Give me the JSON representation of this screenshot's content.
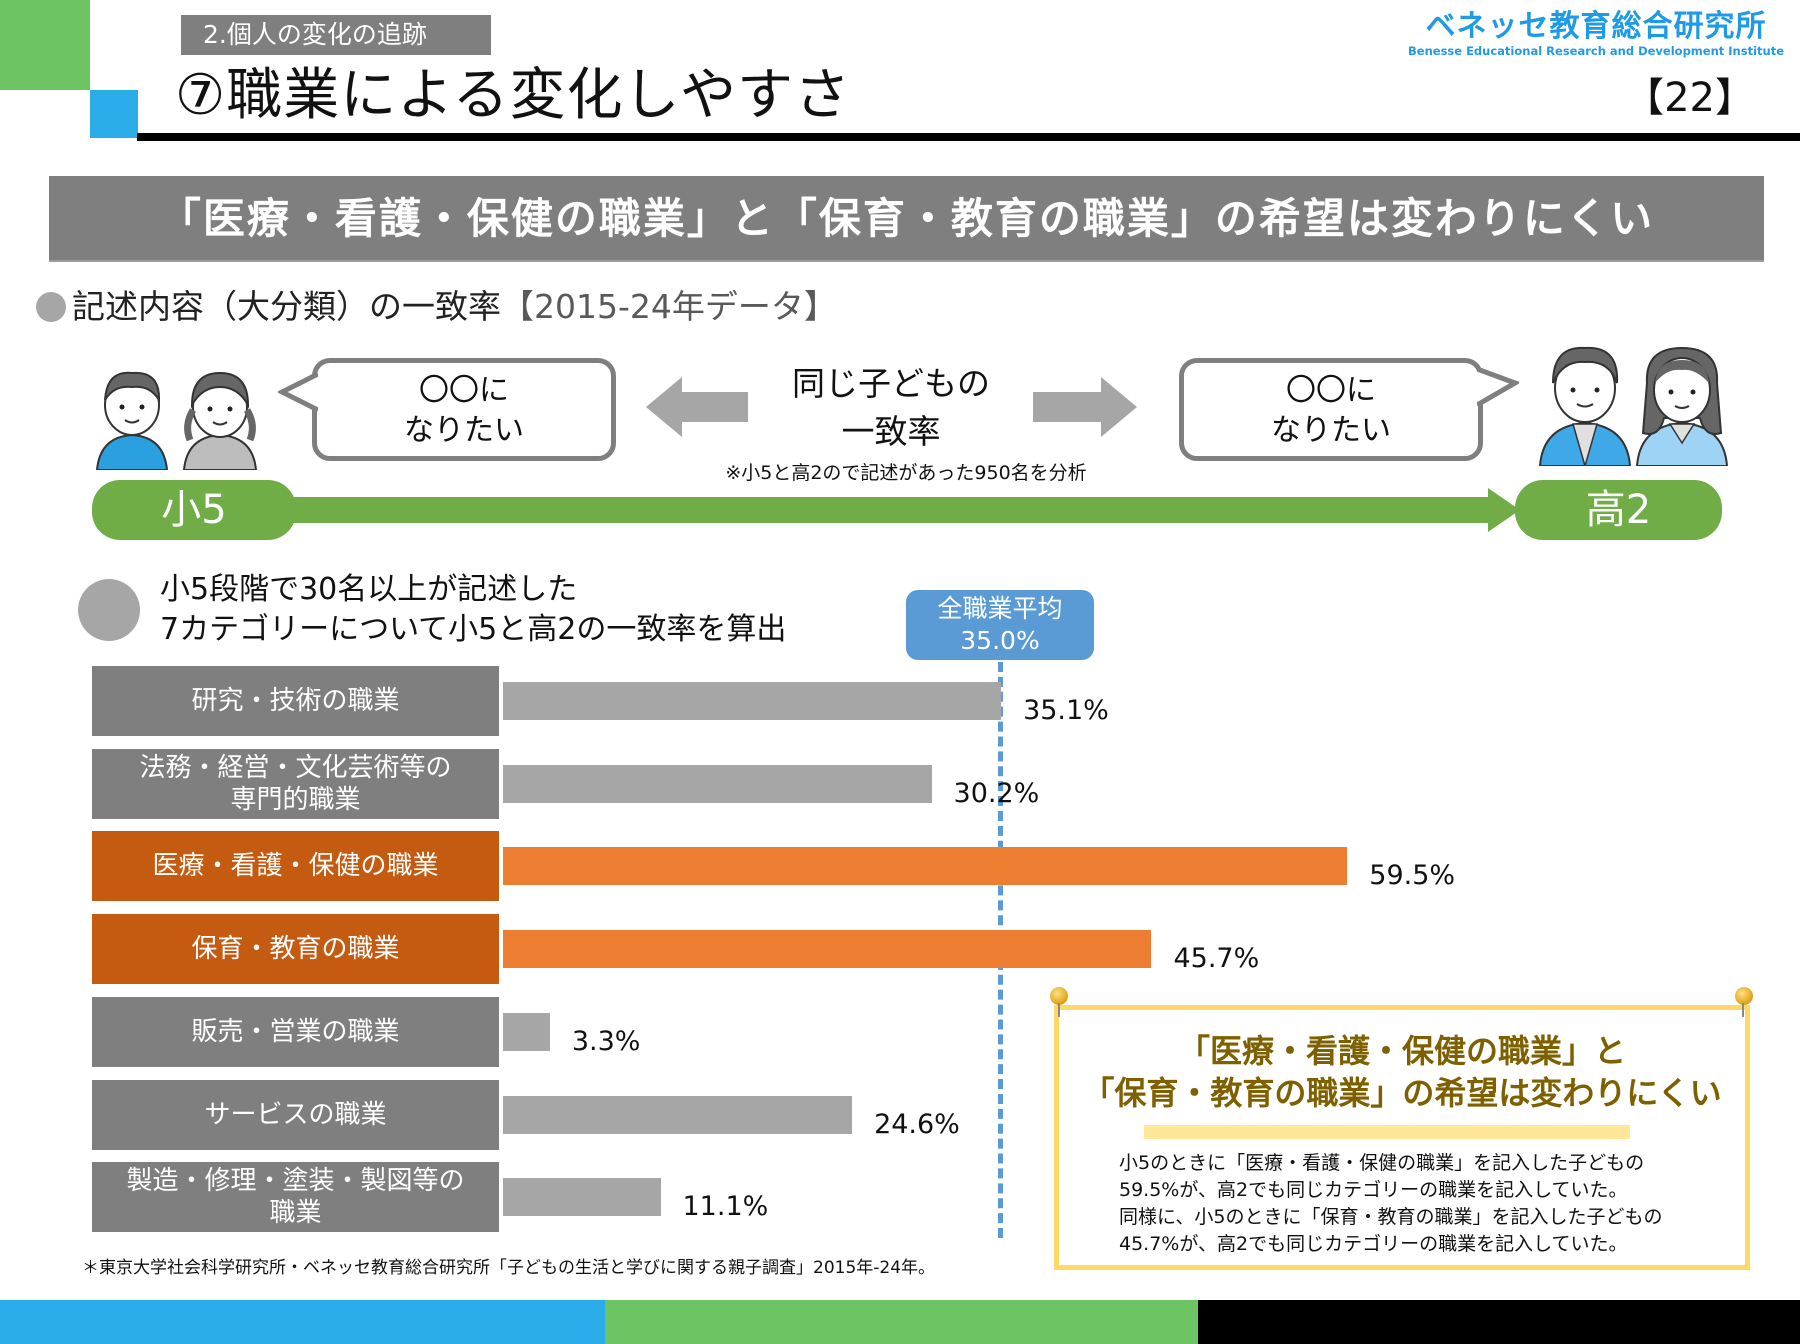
{
  "header": {
    "breadcrumb": "2.個人の変化の追跡",
    "title": "⑦職業による変化しやすさ",
    "page_number": "【22】",
    "logo_jp": "ベネッセ教育総合研究所",
    "logo_en": "Benesse Educational Research and Development Institute"
  },
  "banner": "「医療・看護・保健の職業」と「保育・教育の職業」の希望は変わりにくい",
  "subtitle": {
    "main": "記述内容（大分類）の一致率",
    "bracket": "【2015-24年データ】"
  },
  "timeline": {
    "bubble_left_line1": "〇〇に",
    "bubble_left_line2": "なりたい",
    "bubble_right_line1": "〇〇に",
    "bubble_right_line2": "なりたい",
    "center_line1": "同じ子どもの",
    "center_line2": "一致率",
    "note": "※小5と高2ので記述があった950名を分析",
    "start_label": "小5",
    "end_label": "高2"
  },
  "description": {
    "line1": "小5段階で30名以上が記述した",
    "line2": "7カテゴリーについて小5と高2の一致率を算出"
  },
  "average": {
    "label": "全職業平均",
    "value_text": "35.0%"
  },
  "colors": {
    "gray_label": "#7f7f7f",
    "orange_label": "#c55a11",
    "gray_bar": "#a6a6a6",
    "orange_bar": "#ed7d31",
    "average": "#5b9bd5",
    "green": "#70ad47",
    "blue_accent": "#2aace9"
  },
  "chart_data": {
    "type": "bar",
    "orientation": "horizontal",
    "title": "記述内容（大分類）の一致率【2015-24年データ】",
    "xlabel": "",
    "ylabel": "",
    "xlim": [
      0,
      70
    ],
    "reference_line": {
      "label": "全職業平均",
      "value": 35.0
    },
    "categories": [
      "研究・技術の職業",
      "法務・経営・文化芸術等の\n専門的職業",
      "医療・看護・保健の職業",
      "保育・教育の職業",
      "販売・営業の職業",
      "サービスの職業",
      "製造・修理・塗装・製図等の\n職業"
    ],
    "values": [
      35.1,
      30.2,
      59.5,
      45.7,
      3.3,
      24.6,
      11.1
    ],
    "value_labels": [
      "35.1%",
      "30.2%",
      "59.5%",
      "45.7%",
      "3.3%",
      "24.6%",
      "11.1%"
    ],
    "highlighted": [
      false,
      false,
      true,
      true,
      false,
      false,
      false
    ],
    "unit": "%"
  },
  "callout": {
    "head_line1": "「医療・看護・保健の職業」と",
    "head_line2": "「保育・教育の職業」の希望は変わりにくい",
    "body_line1": "小5のときに「医療・看護・保健の職業」を記入した子どもの",
    "body_line2": "59.5%が、高2でも同じカテゴリーの職業を記入していた。",
    "body_line3": "同様に、小5のときに「保育・教育の職業」を記入した子どもの",
    "body_line4": "45.7%が、高2でも同じカテゴリーの職業を記入していた。"
  },
  "footnote": "＊東京大学社会科学研究所・ベネッセ教育総合研究所「子どもの生活と学びに関する親子調査」2015年-24年。"
}
